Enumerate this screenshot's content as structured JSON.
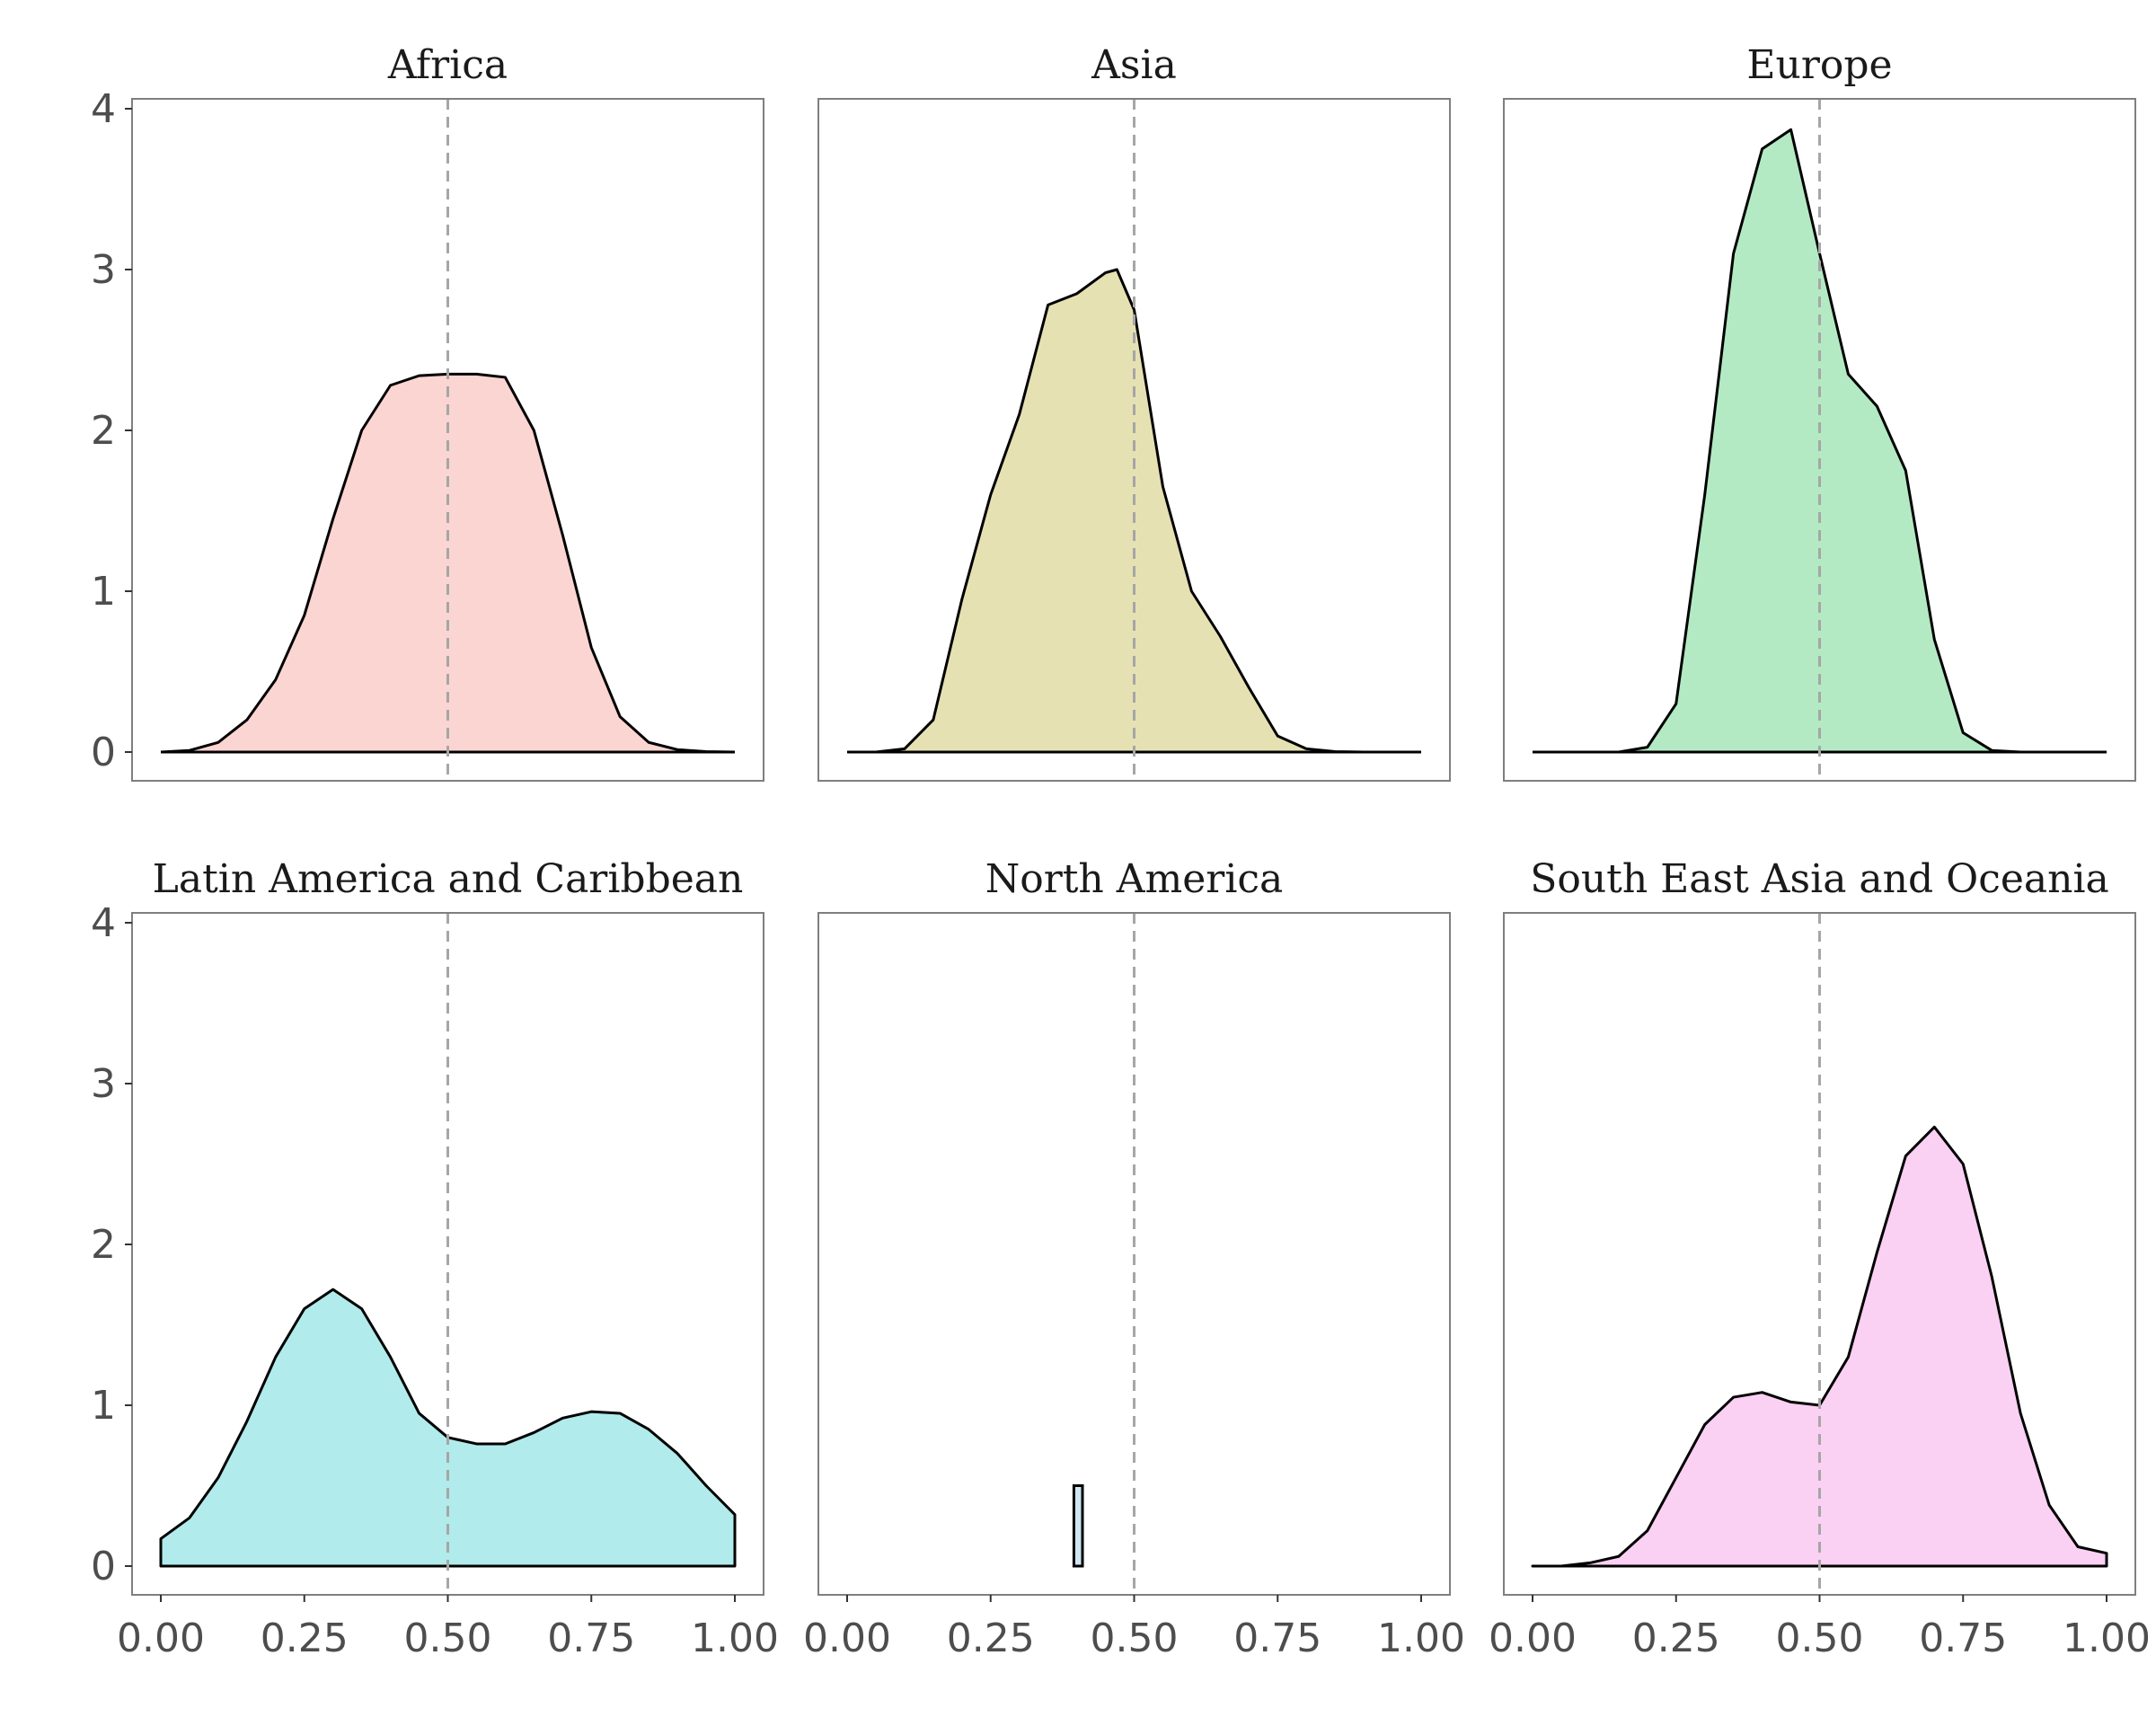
{
  "chart_data": {
    "type": "area",
    "subtype": "faceted-density",
    "layout": {
      "rows": 2,
      "cols": 3
    },
    "xlim": [
      0,
      1
    ],
    "ylim": [
      0,
      4
    ],
    "x_ticks": [
      0,
      0.25,
      0.5,
      0.75,
      1
    ],
    "x_tick_labels": [
      "0.00",
      "0.25",
      "0.50",
      "0.75",
      "1.00"
    ],
    "y_ticks": [
      0,
      1,
      2,
      3,
      4
    ],
    "y_tick_labels": [
      "0",
      "1",
      "2",
      "3",
      "4"
    ],
    "reference_line": {
      "x": 0.5,
      "style": "dashed",
      "color": "#a6a6a6"
    },
    "grid": false,
    "xlabel": "",
    "ylabel": "",
    "panels": [
      {
        "title": "Africa",
        "fill": "#fbd5d2",
        "x": [
          0,
          0.05,
          0.1,
          0.15,
          0.2,
          0.25,
          0.3,
          0.35,
          0.4,
          0.45,
          0.5,
          0.55,
          0.6,
          0.65,
          0.7,
          0.75,
          0.8,
          0.85,
          0.9,
          0.95,
          1
        ],
        "y": [
          0,
          0.01,
          0.06,
          0.2,
          0.45,
          0.85,
          1.45,
          2.0,
          2.28,
          2.34,
          2.35,
          2.35,
          2.33,
          2.0,
          1.35,
          0.65,
          0.22,
          0.06,
          0.015,
          0.003,
          0
        ]
      },
      {
        "title": "Asia",
        "fill": "#e6e1b3",
        "x": [
          0,
          0.05,
          0.1,
          0.15,
          0.2,
          0.25,
          0.3,
          0.35,
          0.4,
          0.45,
          0.47,
          0.5,
          0.55,
          0.6,
          0.65,
          0.7,
          0.75,
          0.8,
          0.85,
          0.9,
          0.95,
          1
        ],
        "y": [
          0,
          0.0,
          0.02,
          0.2,
          0.95,
          1.6,
          2.1,
          2.78,
          2.85,
          2.98,
          3.0,
          2.75,
          1.65,
          1.0,
          0.72,
          0.4,
          0.1,
          0.02,
          0.003,
          0,
          0,
          0
        ]
      },
      {
        "title": "Europe",
        "fill": "#b3eac4",
        "x": [
          0,
          0.15,
          0.2,
          0.25,
          0.3,
          0.35,
          0.4,
          0.45,
          0.5,
          0.55,
          0.6,
          0.65,
          0.7,
          0.75,
          0.8,
          0.85,
          1
        ],
        "y": [
          0,
          0,
          0.03,
          0.3,
          1.6,
          3.1,
          3.75,
          3.87,
          3.1,
          2.35,
          2.15,
          1.75,
          0.7,
          0.12,
          0.01,
          0,
          0
        ]
      },
      {
        "title": "Latin America and Caribbean",
        "fill": "#b1ebeb",
        "closed_ends": true,
        "x": [
          0,
          0.05,
          0.1,
          0.15,
          0.2,
          0.25,
          0.3,
          0.35,
          0.4,
          0.45,
          0.5,
          0.55,
          0.6,
          0.65,
          0.7,
          0.75,
          0.8,
          0.85,
          0.9,
          0.95,
          1
        ],
        "y": [
          0.17,
          0.3,
          0.55,
          0.9,
          1.3,
          1.6,
          1.72,
          1.6,
          1.3,
          0.95,
          0.8,
          0.76,
          0.76,
          0.83,
          0.92,
          0.96,
          0.95,
          0.85,
          0.7,
          0.5,
          0.32
        ]
      },
      {
        "title": "North America",
        "fill": "#cfe8f3",
        "bar": {
          "x_min": 0.395,
          "x_max": 0.41,
          "height": 0.5
        }
      },
      {
        "title": "South East Asia and Oceania",
        "fill": "#fad0f3",
        "closed_ends": true,
        "x": [
          0,
          0.05,
          0.1,
          0.15,
          0.2,
          0.25,
          0.3,
          0.35,
          0.4,
          0.45,
          0.5,
          0.55,
          0.6,
          0.65,
          0.7,
          0.75,
          0.8,
          0.85,
          0.9,
          0.95,
          1
        ],
        "y": [
          0,
          0.0,
          0.02,
          0.06,
          0.22,
          0.55,
          0.88,
          1.05,
          1.08,
          1.02,
          1.0,
          1.3,
          1.95,
          2.55,
          2.73,
          2.5,
          1.8,
          0.95,
          0.38,
          0.12,
          0.08
        ]
      }
    ]
  }
}
